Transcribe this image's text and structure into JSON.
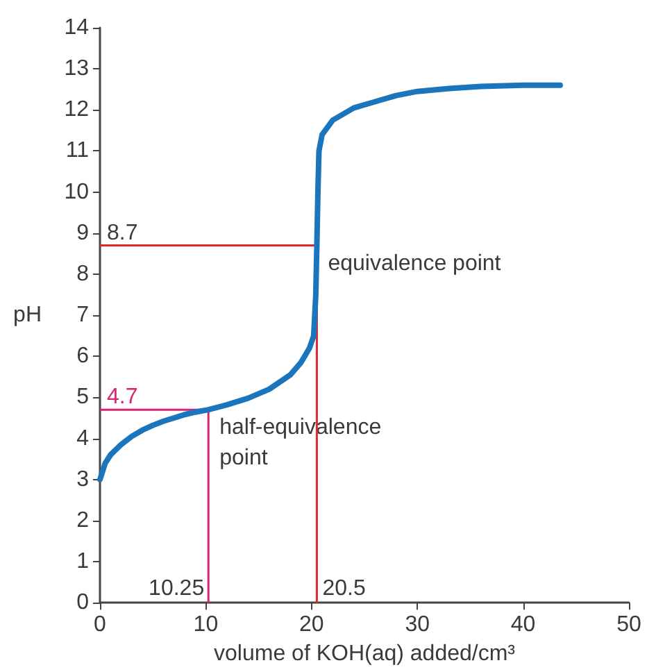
{
  "chart_data": {
    "type": "line",
    "xlabel": "volume of KOH(aq) added/cm³",
    "ylabel": "pH",
    "series": [
      {
        "color": "#1a75bc",
        "x": [
          0,
          0.5,
          1,
          2,
          3,
          4,
          5,
          6,
          7,
          8,
          9,
          10.25,
          12,
          14,
          16,
          18,
          19,
          19.8,
          20.2,
          20.4,
          20.5,
          20.6,
          20.7,
          21,
          22,
          24,
          26,
          28,
          30,
          33,
          36,
          40,
          43.5
        ],
        "values": [
          3.0,
          3.4,
          3.6,
          3.85,
          4.05,
          4.2,
          4.32,
          4.42,
          4.5,
          4.58,
          4.64,
          4.7,
          4.82,
          4.98,
          5.2,
          5.55,
          5.85,
          6.2,
          6.5,
          7.5,
          8.7,
          10,
          11,
          11.4,
          11.75,
          12.05,
          12.2,
          12.35,
          12.45,
          12.52,
          12.57,
          12.6,
          12.6
        ]
      }
    ],
    "xlim": [
      0,
      50
    ],
    "xticks": [
      0,
      10,
      20,
      30,
      40,
      50
    ],
    "ylim": [
      0,
      14
    ],
    "yticks": [
      0,
      1,
      2,
      3,
      4,
      5,
      6,
      7,
      8,
      9,
      10,
      11,
      12,
      13,
      14
    ],
    "ref_lines": [
      {
        "axis": "x",
        "value": 10.25,
        "label": "10.25",
        "color": "#d6246e"
      },
      {
        "axis": "y",
        "value": 4.7,
        "label": "4.7",
        "color": "#d6246e"
      },
      {
        "axis": "x",
        "value": 20.5,
        "label": "20.5",
        "color": "#e0282e"
      },
      {
        "axis": "y",
        "value": 8.7,
        "label": "8.7",
        "color": "#e0282e"
      }
    ],
    "annotations": [
      {
        "text": "equivalence point",
        "x": 20.5,
        "y": 8.7
      },
      {
        "text": "half-equivalence point",
        "x": 10.25,
        "y": 4.7
      }
    ],
    "grid": false,
    "marker": "none",
    "line_style": "solid"
  }
}
